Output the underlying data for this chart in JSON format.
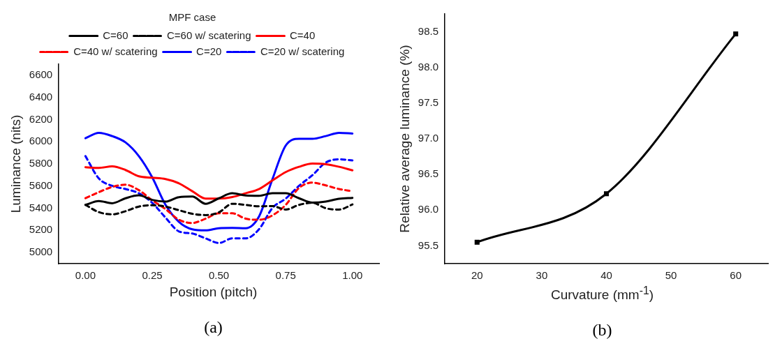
{
  "chart_data": [
    {
      "type": "line",
      "xlabel": "Position (pitch)",
      "ylabel": "Luminance (nits)",
      "legend_title": "MPF case",
      "legend": "top",
      "grid": false,
      "marker": "none",
      "annotations": [
        "(a)"
      ],
      "x": [
        0,
        0.05,
        0.1,
        0.15,
        0.2,
        0.25,
        0.3,
        0.35,
        0.4,
        0.45,
        0.5,
        0.55,
        0.6,
        0.65,
        0.7,
        0.75,
        0.8,
        0.85,
        0.9,
        0.95,
        1.0
      ],
      "xlim": [
        -0.1,
        1.1
      ],
      "xticks": [
        {
          "value": 0,
          "label": "0.00"
        },
        {
          "value": 0.25,
          "label": "0.25"
        },
        {
          "value": 0.5,
          "label": "0.50"
        },
        {
          "value": 0.75,
          "label": "0.75"
        },
        {
          "value": 1,
          "label": "1.00"
        }
      ],
      "ylim": [
        4900,
        6700
      ],
      "yticks": [
        5000,
        5200,
        5400,
        5600,
        5800,
        6000,
        6200,
        6400,
        6600
      ],
      "series": [
        {
          "name": "C=60",
          "color": "#000000",
          "line_style": "solid",
          "values": [
            5430,
            5465,
            5445,
            5490,
            5516,
            5475,
            5460,
            5500,
            5505,
            5440,
            5490,
            5535,
            5515,
            5512,
            5535,
            5535,
            5490,
            5450,
            5460,
            5485,
            5493
          ]
        },
        {
          "name": "C=60 w/ scatering",
          "color": "#000000",
          "line_style": "dashed",
          "values": [
            5430,
            5365,
            5345,
            5373,
            5415,
            5427,
            5415,
            5382,
            5350,
            5338,
            5363,
            5440,
            5430,
            5417,
            5420,
            5388,
            5430,
            5449,
            5400,
            5388,
            5434
          ]
        },
        {
          "name": "C=40",
          "color": "#ff0000",
          "line_style": "solid",
          "values": [
            5770,
            5764,
            5778,
            5745,
            5688,
            5675,
            5663,
            5625,
            5554,
            5487,
            5487,
            5501,
            5535,
            5573,
            5650,
            5726,
            5774,
            5803,
            5797,
            5774,
            5742
          ]
        },
        {
          "name": "C=40 w/ scatering",
          "color": "#ff0000",
          "line_style": "dashed",
          "values": [
            5491,
            5545,
            5592,
            5612,
            5563,
            5472,
            5392,
            5296,
            5267,
            5306,
            5354,
            5354,
            5306,
            5296,
            5335,
            5430,
            5583,
            5631,
            5606,
            5573,
            5554
          ]
        },
        {
          "name": "C=20",
          "color": "#0000ff",
          "line_style": "solid",
          "values": [
            6032,
            6080,
            6051,
            5994,
            5870,
            5679,
            5430,
            5277,
            5210,
            5200,
            5220,
            5223,
            5220,
            5325,
            5660,
            5965,
            6026,
            6026,
            6051,
            6080,
            6074
          ]
        },
        {
          "name": "C=20 w/ scatering",
          "color": "#0000ff",
          "line_style": "dashed",
          "values": [
            5870,
            5669,
            5602,
            5573,
            5535,
            5449,
            5315,
            5191,
            5172,
            5128,
            5086,
            5128,
            5128,
            5210,
            5401,
            5487,
            5602,
            5698,
            5812,
            5841,
            5832
          ]
        }
      ]
    },
    {
      "type": "line",
      "xlabel": "Curvature (mm$^{-1}$)",
      "ylabel": "Relative average luminance (%)",
      "grid": false,
      "marker": "square",
      "line_style": "solid",
      "annotations": [
        "(b)"
      ],
      "x": [
        20,
        40,
        60
      ],
      "xlim": [
        15,
        65
      ],
      "xticks": [
        20,
        30,
        40,
        50,
        60
      ],
      "ylim": [
        95.25,
        98.75
      ],
      "yticks": [
        95.5,
        {
          "value": 96,
          "label": "96.0"
        },
        96.5,
        {
          "value": 97,
          "label": "97.0"
        },
        97.5,
        {
          "value": 98,
          "label": "98.0"
        },
        98.5
      ],
      "series": [
        {
          "color": "#000000",
          "values": [
            95.55,
            96.23,
            98.47
          ]
        }
      ]
    }
  ]
}
